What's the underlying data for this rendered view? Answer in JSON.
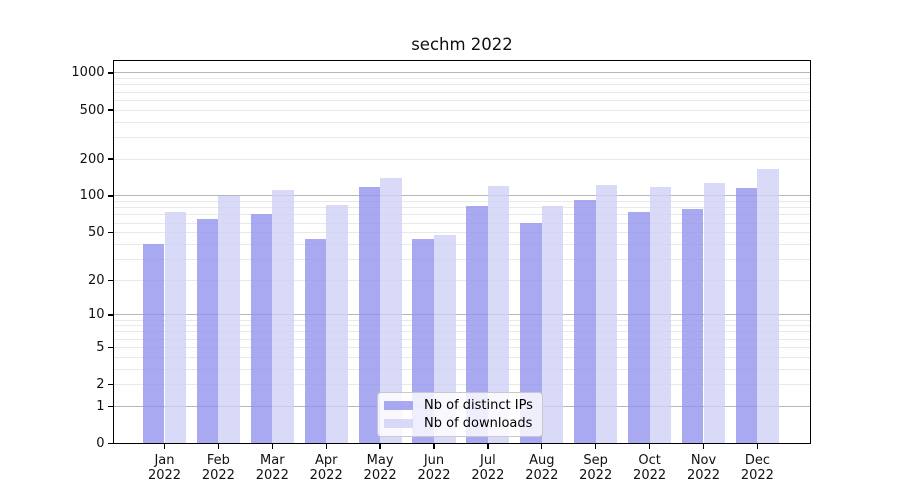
{
  "chart_data": {
    "type": "bar",
    "title": "sechm 2022",
    "categories": [
      "Jan 2022",
      "Feb 2022",
      "Mar 2022",
      "Apr 2022",
      "May 2022",
      "Jun 2022",
      "Jul 2022",
      "Aug 2022",
      "Sep 2022",
      "Oct 2022",
      "Nov 2022",
      "Dec 2022"
    ],
    "series": [
      {
        "name": "Nb of distinct IPs",
        "color": "#9393ee",
        "values": [
          40,
          65,
          71,
          44,
          118,
          44,
          83,
          60,
          93,
          74,
          78,
          116
        ]
      },
      {
        "name": "Nb of downloads",
        "color": "#d0d0f6",
        "values": [
          74,
          100,
          112,
          85,
          139,
          48,
          121,
          83,
          124,
          119,
          128,
          166
        ]
      }
    ],
    "bar_alpha": 0.8,
    "yscale": "symlog-log1p",
    "yticks": [
      0,
      1,
      2,
      5,
      10,
      20,
      50,
      100,
      200,
      500,
      1000
    ],
    "major_grid_values": [
      1,
      10,
      100,
      1000
    ],
    "ylim": [
      0,
      1265
    ],
    "grid": true,
    "legend_position": "lower center",
    "colors": {
      "grid_minor": "#e9e9e9",
      "grid_major": "#b6b6b6",
      "axis": "#000000",
      "background": "#ffffff"
    }
  }
}
